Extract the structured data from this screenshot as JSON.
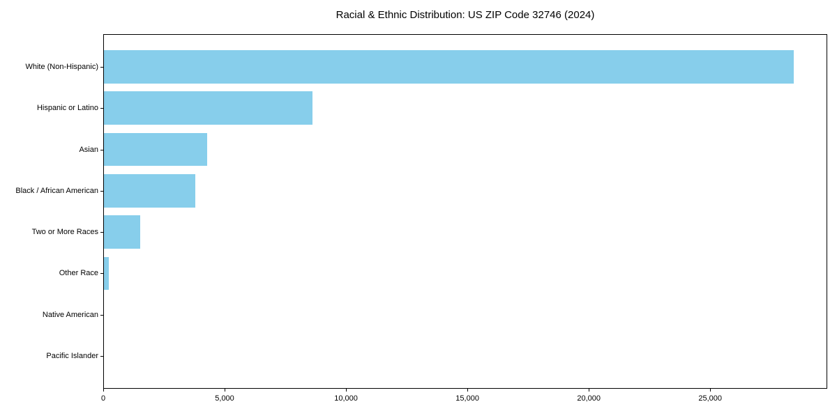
{
  "title": "Racial & Ethnic Distribution: US ZIP Code 32746 (2024)",
  "colors": {
    "bar": "#87CEEB",
    "axis": "#000000",
    "text": "#000000",
    "background": "#FFFFFF"
  },
  "chart_data": {
    "type": "bar",
    "orientation": "horizontal",
    "title": "Racial & Ethnic Distribution: US ZIP Code 32746 (2024)",
    "categories": [
      "White (Non-Hispanic)",
      "Hispanic or Latino",
      "Asian",
      "Black / African American",
      "Two or More Races",
      "Other Race",
      "Native American",
      "Pacific Islander"
    ],
    "values": [
      28400,
      8600,
      4250,
      3750,
      1500,
      200,
      0,
      0
    ],
    "xlabel": "",
    "ylabel": "",
    "xlim": [
      0,
      29820
    ],
    "xticks": [
      0,
      5000,
      10000,
      15000,
      20000,
      25000
    ],
    "xtick_labels": [
      "0",
      "5,000",
      "10,000",
      "15,000",
      "20,000",
      "25,000"
    ],
    "bar_color": "#87CEEB",
    "grid": false,
    "legend": null
  }
}
